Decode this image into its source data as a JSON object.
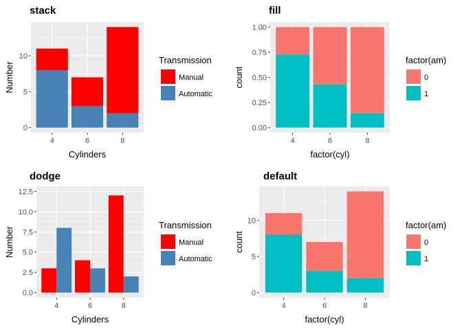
{
  "chart_data": [
    {
      "type": "bar",
      "position": "stack",
      "title": "stack",
      "xlabel": "Cylinders",
      "ylabel": "Number",
      "categories": [
        "4",
        "6",
        "8"
      ],
      "ylim": [
        0,
        14
      ],
      "yticks": [
        0,
        5,
        10
      ],
      "ytick_labels": [
        "0",
        "5",
        "10"
      ],
      "legend_title": "Transmission",
      "series": [
        {
          "name": "Manual",
          "color": "#ff0000",
          "values": [
            3,
            4,
            12
          ]
        },
        {
          "name": "Automatic",
          "color": "#4682b4",
          "values": [
            8,
            3,
            2
          ]
        }
      ]
    },
    {
      "type": "bar",
      "position": "fill",
      "title": "fill",
      "xlabel": "factor(cyl)",
      "ylabel": "count",
      "categories": [
        "4",
        "6",
        "8"
      ],
      "ylim": [
        0,
        1
      ],
      "yticks": [
        0,
        0.25,
        0.5,
        0.75,
        1
      ],
      "ytick_labels": [
        "0.00",
        "0.25",
        "0.50",
        "0.75",
        "1.00"
      ],
      "legend_title": "factor(am)",
      "series": [
        {
          "name": "0",
          "color": "#f8766d",
          "values": [
            0.273,
            0.571,
            0.857
          ]
        },
        {
          "name": "1",
          "color": "#00bfc4",
          "values": [
            0.727,
            0.429,
            0.143
          ]
        }
      ]
    },
    {
      "type": "bar",
      "position": "dodge",
      "title": "dodge",
      "xlabel": "Cylinders",
      "ylabel": "Number",
      "categories": [
        "4",
        "6",
        "8"
      ],
      "ylim": [
        0,
        12.5
      ],
      "yticks": [
        0,
        2.5,
        5,
        7.5,
        10,
        12.5
      ],
      "ytick_labels": [
        "0.0",
        "2.5",
        "5.0",
        "7.5",
        "10.0",
        "12.5"
      ],
      "legend_title": "Transmission",
      "series": [
        {
          "name": "Manual",
          "color": "#ff0000",
          "values": [
            3,
            4,
            12
          ]
        },
        {
          "name": "Automatic",
          "color": "#4682b4",
          "values": [
            8,
            3,
            2
          ]
        }
      ]
    },
    {
      "type": "bar",
      "position": "stack",
      "title": "default",
      "xlabel": "factor(cyl)",
      "ylabel": "count",
      "categories": [
        "4",
        "6",
        "8"
      ],
      "ylim": [
        0,
        14
      ],
      "yticks": [
        0,
        5,
        10
      ],
      "ytick_labels": [
        "0",
        "5",
        "10"
      ],
      "legend_title": "factor(am)",
      "series": [
        {
          "name": "0",
          "color": "#f8766d",
          "values": [
            3,
            4,
            12
          ]
        },
        {
          "name": "1",
          "color": "#00bfc4",
          "values": [
            8,
            3,
            2
          ]
        }
      ]
    }
  ]
}
